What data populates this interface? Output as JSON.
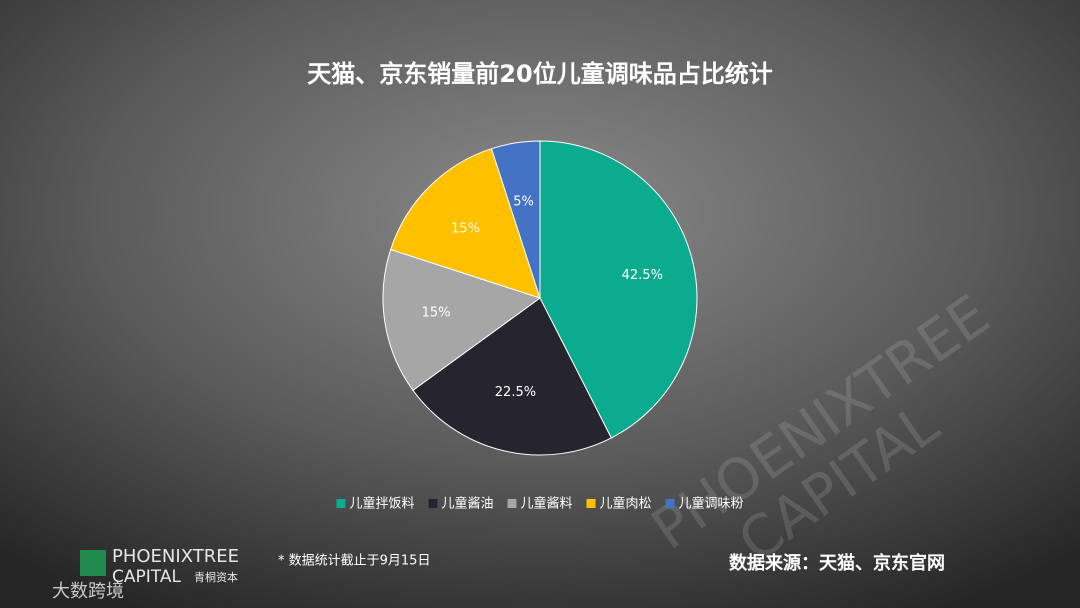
{
  "chart_data": {
    "type": "pie",
    "title": "天猫、京东销量前20位儿童调味品占比统计",
    "categories": [
      "儿童拌饭料",
      "儿童酱油",
      "儿童酱料",
      "儿童肉松",
      "儿童调味粉"
    ],
    "values": [
      42.5,
      22.5,
      15,
      15,
      5
    ],
    "value_labels": [
      "42.5%",
      "22.5%",
      "15%",
      "15%",
      "5%"
    ],
    "colors": [
      "#0aab8f",
      "#25242f",
      "#a6a6a6",
      "#ffc000",
      "#4472c4"
    ],
    "legend": "bottom"
  },
  "footnote": "* 数据统计截止于9月15日",
  "source": "数据来源：天猫、京东官网",
  "logo": {
    "name": "PHOENIXTREE",
    "sub": "CAPITAL",
    "cn": "青桐资本"
  },
  "watermark": "大数跨境"
}
